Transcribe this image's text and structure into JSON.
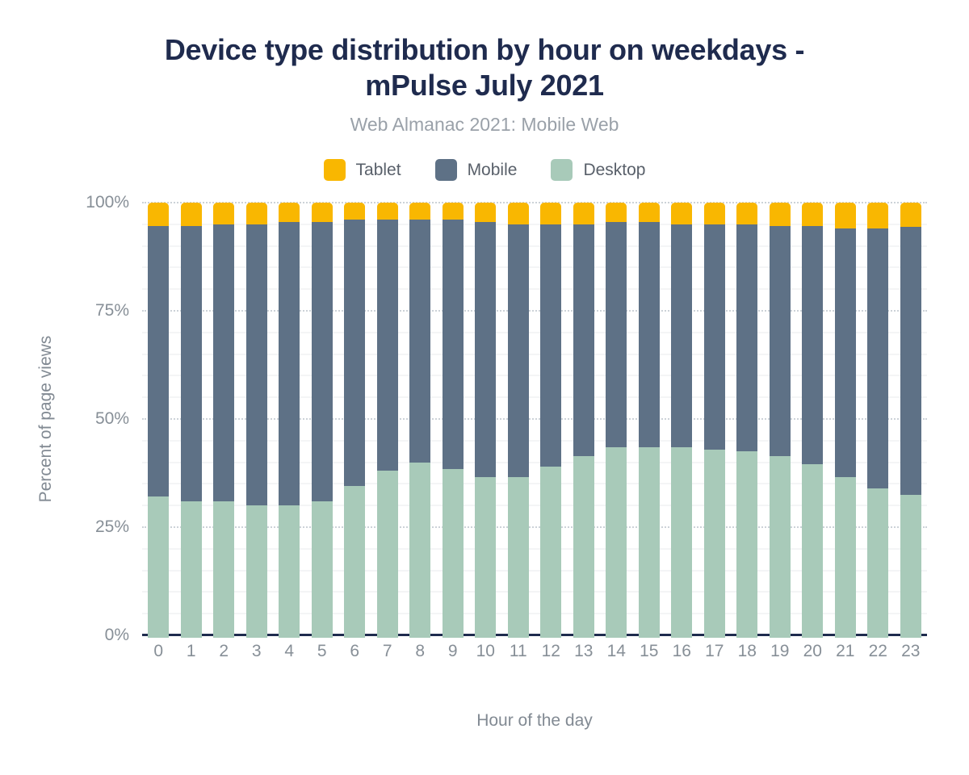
{
  "header": {
    "title_line1": "Device type distribution by hour on weekdays -",
    "title_line2": "mPulse July 2021",
    "subtitle": "Web Almanac 2021: Mobile Web"
  },
  "legend": [
    {
      "label": "Tablet",
      "color": "#f9b701"
    },
    {
      "label": "Mobile",
      "color": "#5e7186"
    },
    {
      "label": "Desktop",
      "color": "#a8cab9"
    }
  ],
  "axes": {
    "y_label": "Percent of page views",
    "x_label": "Hour of the day",
    "y_ticks": [
      "100%",
      "75%",
      "50%",
      "25%",
      "0%"
    ],
    "y_tick_values": [
      100,
      75,
      50,
      25,
      0
    ]
  },
  "colors": {
    "title_navy": "#1f2b4e",
    "axis_line_navy": "#1f2b4e",
    "tick_gray": "#878f97",
    "subtitle_gray": "#9aa1a9",
    "minor_grid": "#f4f5f6",
    "major_grid_dotted": "#ccd2d8",
    "background": "#ffffff"
  },
  "chart_data": {
    "type": "bar",
    "stacked": true,
    "title": "Device type distribution by hour on weekdays - mPulse July 2021",
    "subtitle": "Web Almanac 2021: Mobile Web",
    "xlabel": "Hour of the day",
    "ylabel": "Percent of page views",
    "ylim": [
      0,
      100
    ],
    "y_unit": "%",
    "major_grid_interval": 25,
    "minor_grid_interval": 5,
    "grid": true,
    "legend_position": "top",
    "categories": [
      "0",
      "1",
      "2",
      "3",
      "4",
      "5",
      "6",
      "7",
      "8",
      "9",
      "10",
      "11",
      "12",
      "13",
      "14",
      "15",
      "16",
      "17",
      "18",
      "19",
      "20",
      "21",
      "22",
      "23"
    ],
    "series": [
      {
        "name": "Desktop",
        "color": "#a8cab9",
        "values": [
          32,
          31,
          31,
          30,
          30,
          31,
          34.5,
          38,
          40,
          38.5,
          36.5,
          36.5,
          39,
          41.5,
          43.5,
          43.5,
          43.5,
          43,
          42.5,
          41.5,
          39.5,
          36.5,
          34,
          32.5
        ]
      },
      {
        "name": "Mobile",
        "color": "#5e7186",
        "values": [
          62.5,
          63.5,
          64,
          65,
          65.5,
          64.5,
          61.5,
          58,
          56,
          57.5,
          59,
          58.5,
          56,
          53.5,
          52,
          52,
          51.5,
          52,
          52.5,
          53,
          55,
          57.5,
          60,
          62
        ]
      },
      {
        "name": "Tablet",
        "color": "#f9b701",
        "values": [
          5.5,
          5.5,
          5,
          5,
          4.5,
          4.5,
          4,
          4,
          4,
          4,
          4.5,
          5,
          5,
          5,
          4.5,
          4.5,
          5,
          5,
          5,
          5.5,
          5.5,
          6,
          6,
          5.5
        ]
      }
    ]
  }
}
